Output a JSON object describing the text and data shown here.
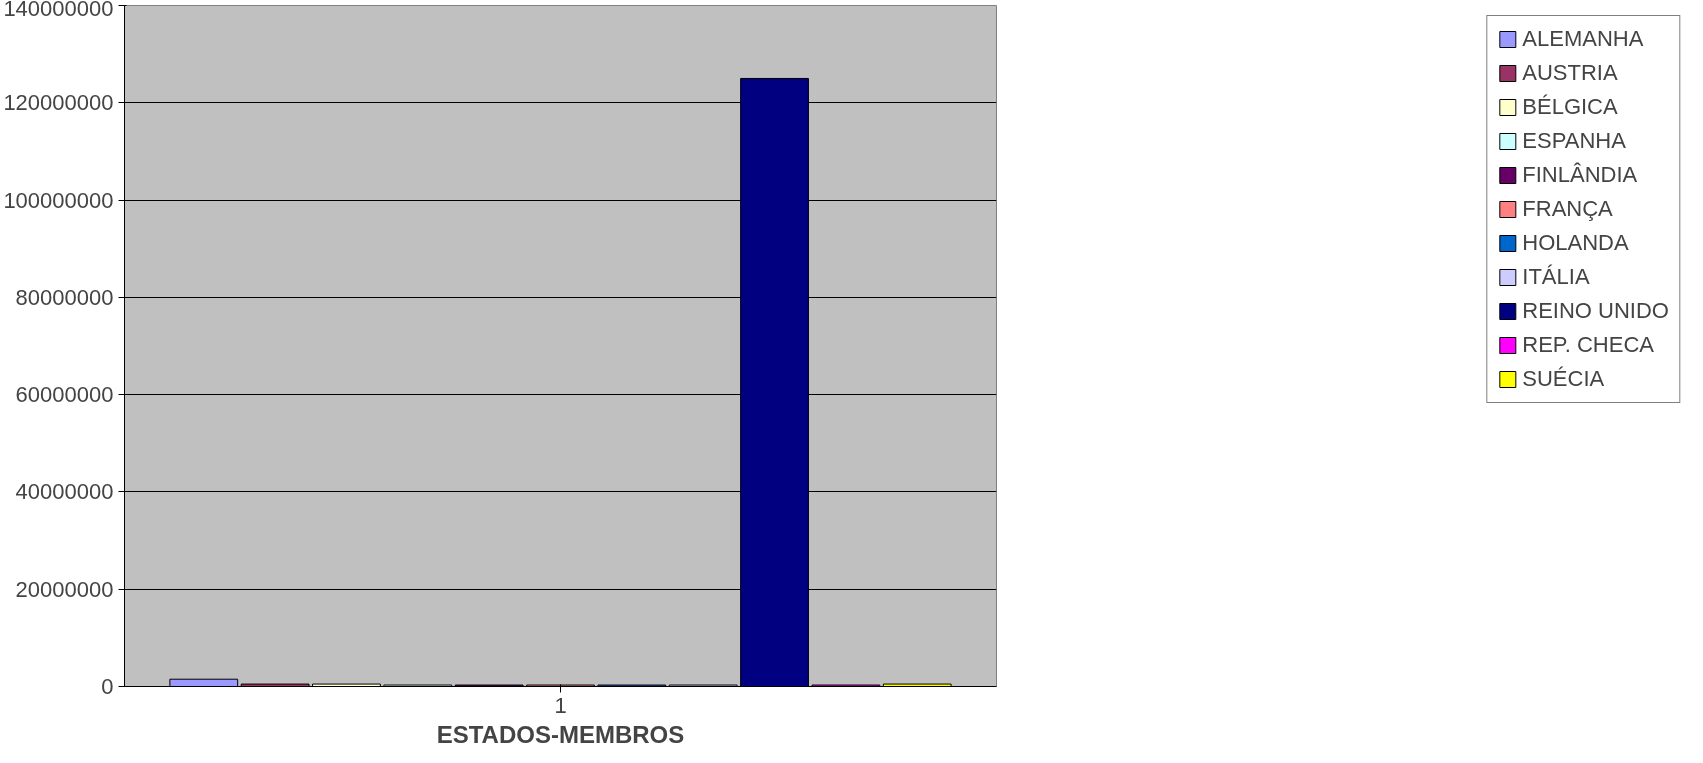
{
  "chart_data": {
    "type": "bar",
    "xlabel": "ESTADOS-MEMBROS",
    "categories": [
      "1"
    ],
    "series": [
      {
        "name": "ALEMANHA",
        "color": "#9999ff",
        "values": [
          1500000
        ]
      },
      {
        "name": "AUSTRIA",
        "color": "#993366",
        "values": [
          500000
        ]
      },
      {
        "name": "BÉLGICA",
        "color": "#ffffcc",
        "values": [
          500000
        ]
      },
      {
        "name": "ESPANHA",
        "color": "#ccffff",
        "values": [
          300000
        ]
      },
      {
        "name": "FINLÂNDIA",
        "color": "#660066",
        "values": [
          300000
        ]
      },
      {
        "name": "FRANÇA",
        "color": "#ff8080",
        "values": [
          300000
        ]
      },
      {
        "name": "HOLANDA",
        "color": "#0066cc",
        "values": [
          300000
        ]
      },
      {
        "name": "ITÁLIA",
        "color": "#ccccff",
        "values": [
          300000
        ]
      },
      {
        "name": "REINO UNIDO",
        "color": "#000080",
        "values": [
          125000000
        ]
      },
      {
        "name": "REP. CHECA",
        "color": "#ff00ff",
        "values": [
          300000
        ]
      },
      {
        "name": "SUÉCIA",
        "color": "#ffff00",
        "values": [
          500000
        ]
      }
    ],
    "ylim": [
      0,
      140000000
    ],
    "yticks": [
      0,
      20000000,
      40000000,
      60000000,
      80000000,
      100000000,
      120000000,
      140000000
    ],
    "grid": "y",
    "legend": "right"
  }
}
